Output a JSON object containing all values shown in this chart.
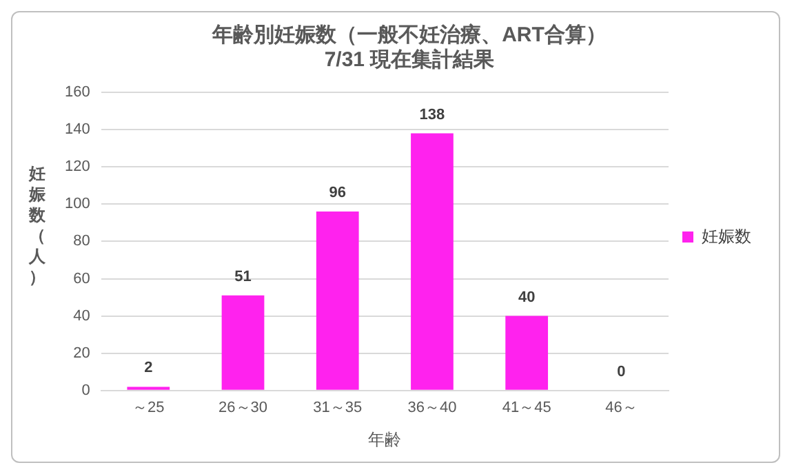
{
  "chart_data": {
    "type": "bar",
    "title": "年齢別妊娠数（一般不妊治療、ART合算）",
    "subtitle": "7/31 現在集計結果",
    "xlabel": "年齢",
    "ylabel": "妊娠数（人）",
    "categories": [
      "～25",
      "26～30",
      "31～35",
      "36～40",
      "41～45",
      "46～"
    ],
    "series": [
      {
        "name": "妊娠数",
        "color": "#ff22ee",
        "values": [
          2,
          51,
          96,
          138,
          40,
          0
        ]
      }
    ],
    "ylim": [
      0,
      160
    ],
    "yticks": [
      0,
      20,
      40,
      60,
      80,
      100,
      120,
      140,
      160
    ],
    "grid": "y",
    "legend": "right",
    "data_labels": true
  }
}
